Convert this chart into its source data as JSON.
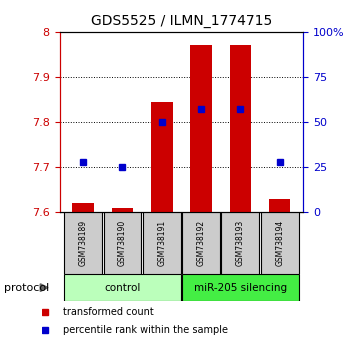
{
  "title": "GDS5525 / ILMN_1774715",
  "samples": [
    "GSM738189",
    "GSM738190",
    "GSM738191",
    "GSM738192",
    "GSM738193",
    "GSM738194"
  ],
  "transformed_counts": [
    7.62,
    7.61,
    7.845,
    7.97,
    7.97,
    7.63
  ],
  "percentile_ranks": [
    28,
    25,
    50,
    57,
    57,
    28
  ],
  "ylim_left": [
    7.6,
    8.0
  ],
  "ylim_right": [
    0,
    100
  ],
  "yticks_left": [
    7.6,
    7.7,
    7.8,
    7.9,
    8.0
  ],
  "yticks_right": [
    0,
    25,
    50,
    75,
    100
  ],
  "groups": [
    {
      "label": "control",
      "indices": [
        0,
        1,
        2
      ],
      "color": "#ccffcc"
    },
    {
      "label": "miR-205 silencing",
      "indices": [
        3,
        4,
        5
      ],
      "color": "#44ee44"
    }
  ],
  "bar_color": "#cc0000",
  "dot_color": "#0000cc",
  "bar_bottom": 7.6,
  "bar_width": 0.55,
  "bg_color": "#ffffff",
  "left_tick_color": "#cc0000",
  "right_tick_color": "#0000cc",
  "legend_items": [
    {
      "label": "transformed count",
      "color": "#cc0000"
    },
    {
      "label": "percentile rank within the sample",
      "color": "#0000cc"
    }
  ],
  "protocol_label": "protocol",
  "sample_box_color": "#cccccc",
  "group_bg_colors": [
    "#bbffbb",
    "#44ee44"
  ],
  "ytick_left_labels": [
    "7.6",
    "7.7",
    "7.8",
    "7.9",
    "8"
  ],
  "ytick_right_labels": [
    "0",
    "25",
    "50",
    "75",
    "100%"
  ]
}
